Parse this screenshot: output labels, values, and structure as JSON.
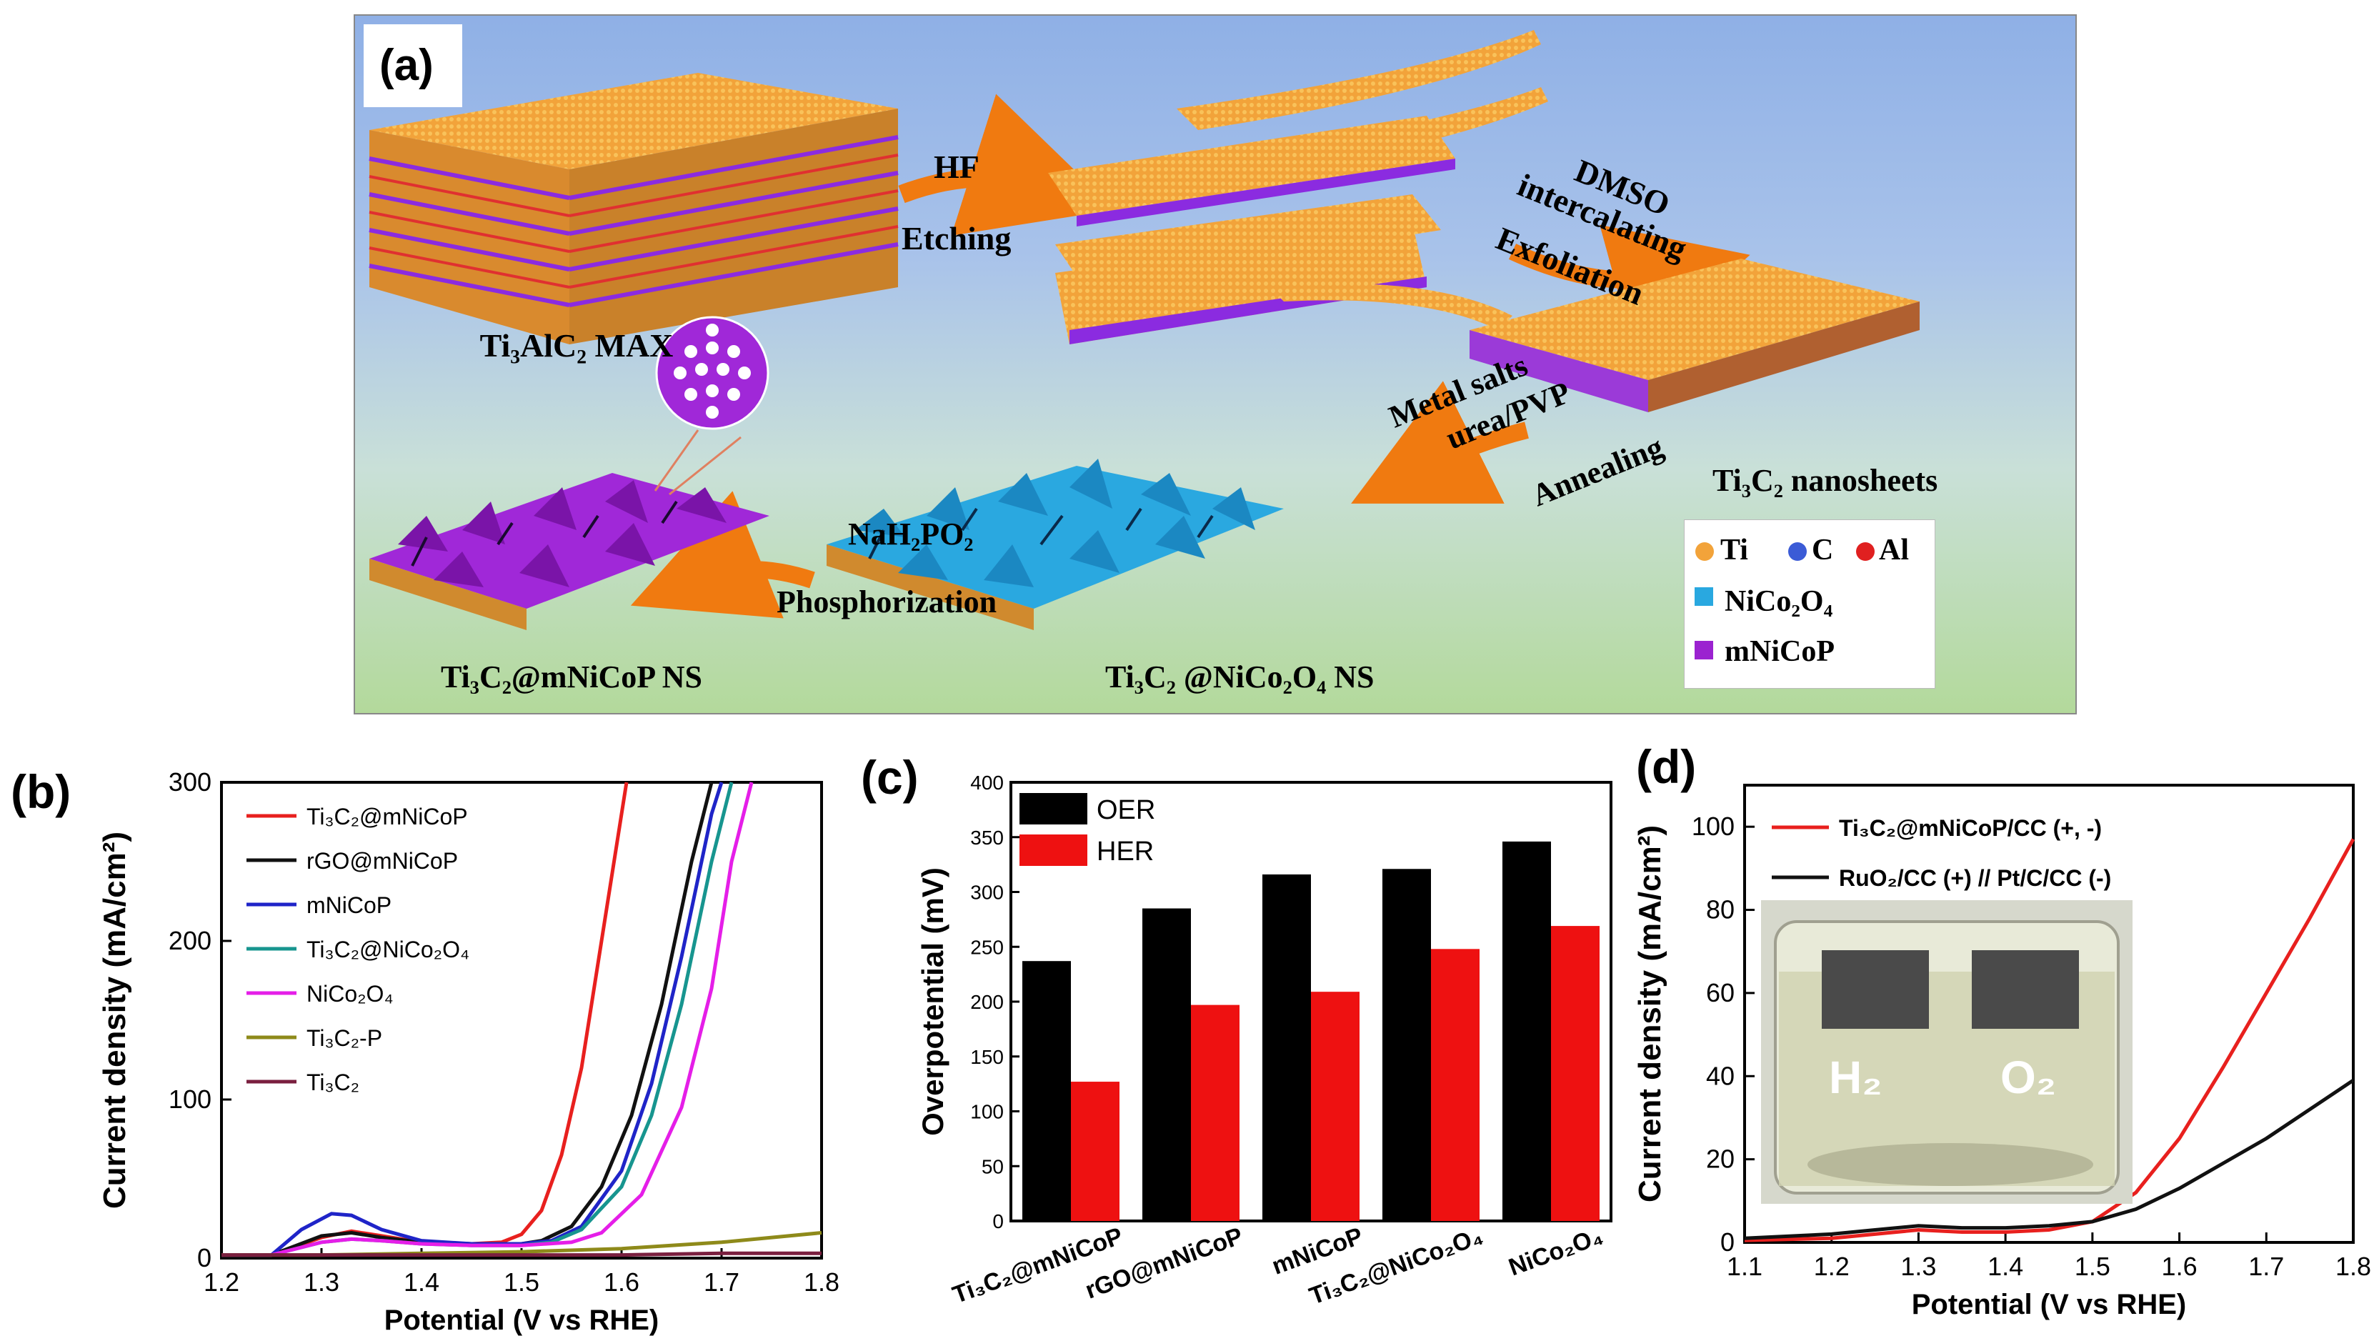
{
  "panel_a": {
    "label": "(a)",
    "step1_top": "HF",
    "step1_bottom": "Etching",
    "step2_line1": "DMSO",
    "step2_line2": "intercalating",
    "step2_line3": "Exfoliation",
    "step3_line1": "Metal salts",
    "step3_line2": "urea/PVP",
    "step3_line3": "Annealing",
    "step4_top": "NaH₂PO₂",
    "step4_bottom": "Phosphorization",
    "max_label": "Ti₃AlC₂ MAX",
    "nanosheet_label": "Ti₃C₂ nanosheets",
    "nco_label": "Ti₃C₂ @NiCo₂O₄ NS",
    "mnicop_label": "Ti₃C₂@mNiCoP NS",
    "legend": {
      "ti": "Ti",
      "c": "C",
      "al": "Al",
      "nico2o4": "NiCo₂O₄",
      "mnicop": "mNiCoP",
      "ti_color": "#f2a33a",
      "c_color": "#3b5bd6",
      "al_color": "#e02020",
      "nico2o4_color": "#29a8e0",
      "mnicop_color": "#9b22d0"
    }
  },
  "panel_b": {
    "label": "(b)",
    "chart_data": {
      "type": "line",
      "xlabel": "Potential (V vs RHE)",
      "ylabel": "Current density (mA/cm²)",
      "xlim": [
        1.2,
        1.8
      ],
      "ylim": [
        0,
        300
      ],
      "xticks": [
        "1.2",
        "1.3",
        "1.4",
        "1.5",
        "1.6",
        "1.7",
        "1.8"
      ],
      "yticks": [
        "0",
        "100",
        "200",
        "300"
      ],
      "series": [
        {
          "name": "Ti₃C₂@mNiCoP",
          "color": "#e8201e",
          "x": [
            1.2,
            1.25,
            1.3,
            1.33,
            1.36,
            1.4,
            1.45,
            1.48,
            1.5,
            1.52,
            1.54,
            1.56,
            1.58,
            1.6,
            1.605
          ],
          "y": [
            2,
            2,
            13,
            17,
            14,
            10,
            9,
            10,
            15,
            30,
            65,
            120,
            200,
            280,
            300
          ]
        },
        {
          "name": "rGO@mNiCoP",
          "color": "#111111",
          "x": [
            1.2,
            1.25,
            1.3,
            1.33,
            1.36,
            1.4,
            1.45,
            1.5,
            1.52,
            1.55,
            1.58,
            1.61,
            1.64,
            1.67,
            1.69
          ],
          "y": [
            2,
            2,
            14,
            16,
            13,
            10,
            9,
            9,
            11,
            20,
            45,
            90,
            160,
            250,
            300
          ]
        },
        {
          "name": "mNiCoP",
          "color": "#1f24c8",
          "x": [
            1.2,
            1.25,
            1.28,
            1.31,
            1.33,
            1.36,
            1.4,
            1.45,
            1.5,
            1.53,
            1.56,
            1.6,
            1.63,
            1.66,
            1.69,
            1.7
          ],
          "y": [
            2,
            2,
            18,
            28,
            27,
            18,
            11,
            9,
            9,
            11,
            20,
            55,
            110,
            190,
            280,
            300
          ]
        },
        {
          "name": "Ti₃C₂@NiCo₂O₄",
          "color": "#17958f",
          "x": [
            1.2,
            1.25,
            1.3,
            1.33,
            1.36,
            1.4,
            1.45,
            1.5,
            1.53,
            1.56,
            1.6,
            1.63,
            1.66,
            1.69,
            1.71
          ],
          "y": [
            2,
            2,
            10,
            12,
            11,
            9,
            8,
            8,
            10,
            18,
            45,
            90,
            160,
            250,
            300
          ]
        },
        {
          "name": "NiCo₂O₄",
          "color": "#e51ee8",
          "x": [
            1.2,
            1.25,
            1.3,
            1.33,
            1.36,
            1.4,
            1.45,
            1.5,
            1.55,
            1.58,
            1.62,
            1.66,
            1.69,
            1.71,
            1.73
          ],
          "y": [
            2,
            2,
            10,
            12,
            11,
            9,
            8,
            8,
            10,
            16,
            40,
            95,
            170,
            250,
            300
          ]
        },
        {
          "name": "Ti₃C₂-P",
          "color": "#8e8a1a",
          "x": [
            1.2,
            1.3,
            1.4,
            1.5,
            1.6,
            1.7,
            1.8
          ],
          "y": [
            2,
            2,
            3,
            4,
            6,
            10,
            16
          ]
        },
        {
          "name": "Ti₃C₂",
          "color": "#7a1f3f",
          "x": [
            1.2,
            1.3,
            1.4,
            1.5,
            1.6,
            1.7,
            1.8
          ],
          "y": [
            2,
            2,
            2,
            2,
            2,
            3,
            3
          ]
        }
      ]
    }
  },
  "panel_c": {
    "label": "(c)",
    "chart_data": {
      "type": "bar",
      "ylabel": "Overpotential (mV)",
      "ylim": [
        0,
        400
      ],
      "yticks": [
        "0",
        "50",
        "100",
        "150",
        "200",
        "250",
        "300",
        "350",
        "400"
      ],
      "categories": [
        "Ti₃C₂@mNiCoP",
        "rGO@mNiCoP",
        "mNiCoP",
        "Ti₃C₂@NiCo₂O₄",
        "NiCo₂O₄"
      ],
      "series": [
        {
          "name": "OER",
          "color": "#000000",
          "values": [
            237,
            285,
            316,
            321,
            346
          ]
        },
        {
          "name": "HER",
          "color": "#ee1111",
          "values": [
            127,
            197,
            209,
            248,
            269
          ]
        }
      ]
    }
  },
  "panel_d": {
    "label": "(d)",
    "inset": {
      "h2": "H₂",
      "o2": "O₂"
    },
    "chart_data": {
      "type": "line",
      "xlabel": "Potential (V vs RHE)",
      "ylabel": "Current density (mA/cm²)",
      "xlim": [
        1.1,
        1.8
      ],
      "ylim": [
        0,
        110
      ],
      "xticks": [
        "1.1",
        "1.2",
        "1.3",
        "1.4",
        "1.5",
        "1.6",
        "1.7",
        "1.8"
      ],
      "yticks": [
        "0",
        "20",
        "40",
        "60",
        "80",
        "100"
      ],
      "series": [
        {
          "name": "Ti₃C₂@mNiCoP/CC (+, -)",
          "color": "#e8201e",
          "x": [
            1.1,
            1.2,
            1.25,
            1.3,
            1.35,
            1.4,
            1.45,
            1.5,
            1.55,
            1.6,
            1.65,
            1.7,
            1.75,
            1.8
          ],
          "y": [
            0.5,
            1,
            2,
            3,
            2.5,
            2.5,
            3,
            5,
            12,
            25,
            42,
            60,
            78,
            97
          ]
        },
        {
          "name": "RuO₂/CC (+) // Pt/C/CC (-)",
          "color": "#111111",
          "x": [
            1.1,
            1.2,
            1.25,
            1.3,
            1.35,
            1.4,
            1.45,
            1.5,
            1.55,
            1.6,
            1.65,
            1.7,
            1.75,
            1.8
          ],
          "y": [
            1,
            2,
            3,
            4,
            3.5,
            3.5,
            4,
            5,
            8,
            13,
            19,
            25,
            32,
            39
          ]
        }
      ]
    }
  }
}
